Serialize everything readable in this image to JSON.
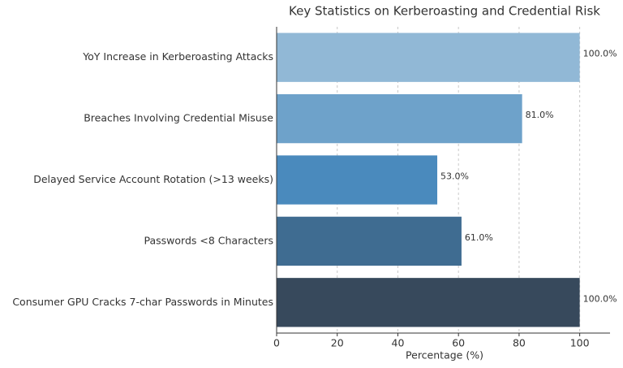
{
  "chart_data": {
    "type": "barh",
    "title": "Key Statistics on Kerberoasting and Credential Risk",
    "xlabel": "Percentage (%)",
    "categories": [
      "YoY Increase in Kerberoasting Attacks",
      "Breaches Involving Credential Misuse",
      "Delayed Service Account Rotation (>13 weeks)",
      "Passwords <8 Characters",
      "Consumer GPU Cracks 7-char Passwords in Minutes"
    ],
    "values": [
      100,
      81,
      53,
      61,
      100
    ],
    "value_labels": [
      "100.0%",
      "81.0%",
      "53.0%",
      "61.0%",
      "100.0%"
    ],
    "colors": [
      "#91b8d6",
      "#6ea2ca",
      "#4a8abd",
      "#3f6c91",
      "#37495c"
    ],
    "xlim": [
      0,
      110
    ],
    "xticks": [
      0,
      20,
      40,
      60,
      80,
      100
    ],
    "grid": true
  }
}
